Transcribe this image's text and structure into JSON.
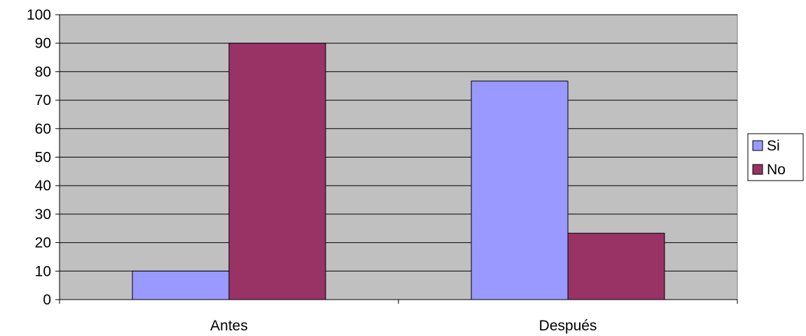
{
  "chart_data": {
    "type": "bar",
    "categories": [
      "Antes",
      "Después"
    ],
    "series": [
      {
        "name": "Si",
        "values": [
          10,
          76.7
        ],
        "color": "#9999ff"
      },
      {
        "name": "No",
        "values": [
          90,
          23.3
        ],
        "color": "#993366"
      }
    ],
    "title": "",
    "xlabel": "",
    "ylabel": "",
    "ylim": [
      0,
      100
    ],
    "yticks": [
      0,
      10,
      20,
      30,
      40,
      50,
      60,
      70,
      80,
      90,
      100
    ],
    "grid": true,
    "legend": "right",
    "plot_background": "#c0c0c0"
  }
}
